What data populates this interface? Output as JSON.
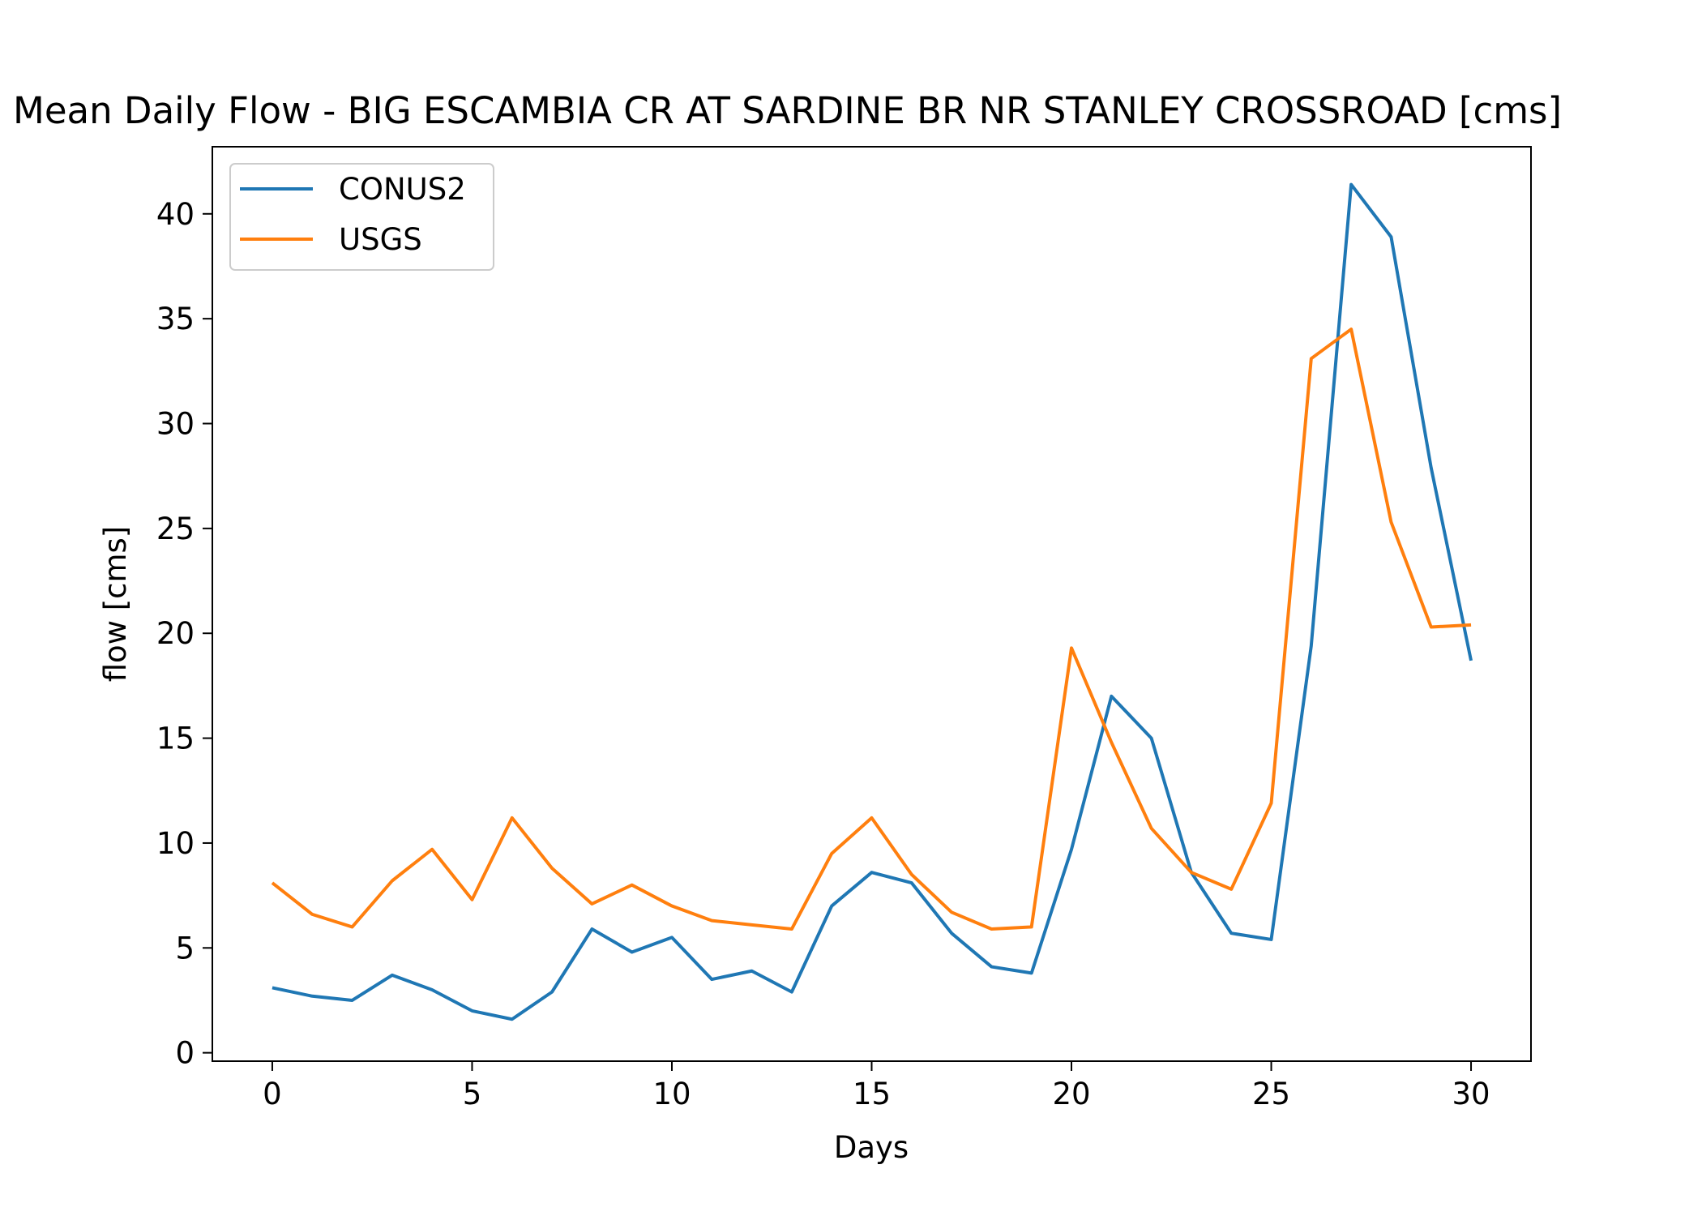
{
  "chart_data": {
    "type": "line",
    "title": "Mean Daily Flow - BIG ESCAMBIA CR AT SARDINE BR NR STANLEY CROSSROAD [cms]",
    "xlabel": "Days",
    "ylabel": "flow [cms]",
    "xlim": [
      -1.5,
      31.5
    ],
    "ylim": [
      -0.4,
      43.2
    ],
    "xticks": [
      0,
      5,
      10,
      15,
      20,
      25,
      30
    ],
    "yticks": [
      0,
      5,
      10,
      15,
      20,
      25,
      30,
      35,
      40
    ],
    "grid": false,
    "legend_position": "upper-left",
    "x": [
      0,
      1,
      2,
      3,
      4,
      5,
      6,
      7,
      8,
      9,
      10,
      11,
      12,
      13,
      14,
      15,
      16,
      17,
      18,
      19,
      20,
      21,
      22,
      23,
      24,
      25,
      26,
      27,
      28,
      29,
      30
    ],
    "series": [
      {
        "name": "CONUS2",
        "color": "#1f77b4",
        "values": [
          3.1,
          2.7,
          2.5,
          3.7,
          3.0,
          2.0,
          1.6,
          2.9,
          5.9,
          4.8,
          5.5,
          3.5,
          3.9,
          2.9,
          7.0,
          8.6,
          8.1,
          5.7,
          4.1,
          3.8,
          9.7,
          17.0,
          15.0,
          8.6,
          5.7,
          5.4,
          19.4,
          41.4,
          38.9,
          27.9,
          18.7
        ]
      },
      {
        "name": "USGS",
        "color": "#ff7f0e",
        "values": [
          8.1,
          6.6,
          6.0,
          8.2,
          9.7,
          7.3,
          11.2,
          8.8,
          7.1,
          8.0,
          7.0,
          6.3,
          6.1,
          5.9,
          9.5,
          11.2,
          8.5,
          6.7,
          5.9,
          6.0,
          19.3,
          14.8,
          10.7,
          8.6,
          7.8,
          11.9,
          33.1,
          34.5,
          25.3,
          20.3,
          20.4
        ]
      }
    ]
  }
}
